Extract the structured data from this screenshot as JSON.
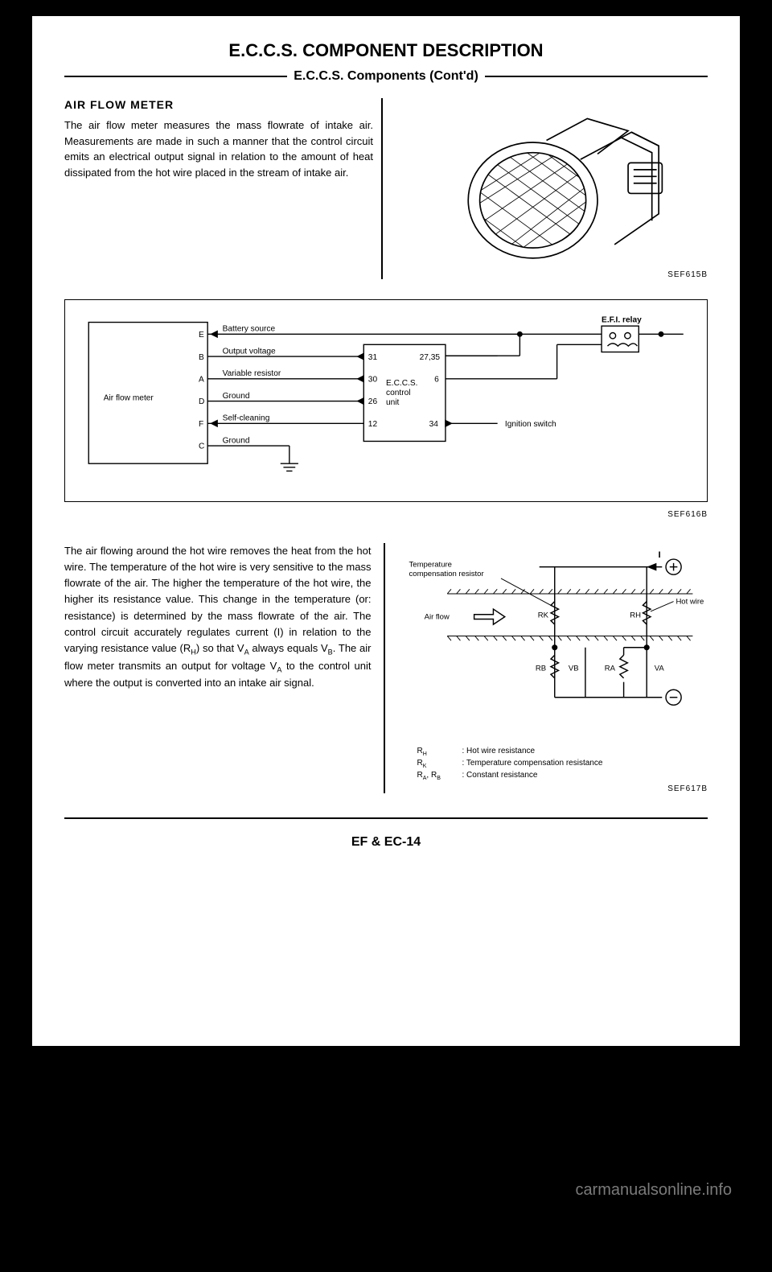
{
  "title": "E.C.C.S. COMPONENT DESCRIPTION",
  "subtitle": "E.C.C.S. Components (Cont'd)",
  "section1": {
    "heading": "AIR FLOW METER",
    "body": "The air flow meter measures the mass flowrate of intake air. Measurements are made in such a manner that the control circuit emits an electrical output signal in relation to the amount of heat dissipated from the hot wire placed in the stream of intake air.",
    "fig_label": "SEF615B"
  },
  "diagram": {
    "air_flow_meter_label": "Air flow meter",
    "pins": [
      "E",
      "B",
      "A",
      "D",
      "F",
      "C"
    ],
    "signals": {
      "E": "Battery source",
      "B": "Output voltage",
      "A": "Variable resistor",
      "D": "Ground",
      "F": "Self-cleaning",
      "C": "Ground"
    },
    "eccs_label": "E.C.C.S. control unit",
    "eccs_pins_left": [
      "31",
      "30",
      "26",
      "12"
    ],
    "eccs_pins_right": [
      "27,35",
      "6",
      "34"
    ],
    "efi_relay_label": "E.F.I. relay",
    "ignition_switch_label": "Ignition switch",
    "fig_label": "SEF616B"
  },
  "section3": {
    "body_html": "The air flowing around the hot wire removes the heat from the hot wire. The temperature of the hot wire is very sensitive to the mass flowrate of the air. The higher the temperature of the hot wire, the higher its resistance value. This change in the temperature (or: resistance) is determined by the mass flowrate of the air. The control circuit accurately regulates current (I) in relation to the varying resistance value (R<sub>H</sub>) so that V<sub>A</sub> always equals V<sub>B</sub>. The air flow meter transmits an output for voltage V<sub>A</sub> to the control unit where the output is converted into an intake air signal.",
    "circuit": {
      "temp_comp_label": "Temperature compensation resistor",
      "air_flow_label": "Air flow",
      "hot_wire_label": "Hot wire",
      "RK": "RK",
      "RH": "RH",
      "RB": "RB",
      "VB": "VB",
      "RA": "RA",
      "VA": "VA",
      "I": "I",
      "legend": [
        {
          "key": "R<sub>H</sub>",
          "desc": ": Hot wire resistance"
        },
        {
          "key": "R<sub>K</sub>",
          "desc": ": Temperature compensation resistance"
        },
        {
          "key": "R<sub>A</sub>, R<sub>B</sub>",
          "desc": ": Constant resistance"
        }
      ],
      "fig_label": "SEF617B"
    }
  },
  "page_num": "EF & EC-14",
  "watermark": "carmanualsonline.info",
  "colors": {
    "page_bg": "#ffffff",
    "outer_bg": "#000000",
    "text": "#000000",
    "watermark": "#7a7a7a"
  }
}
